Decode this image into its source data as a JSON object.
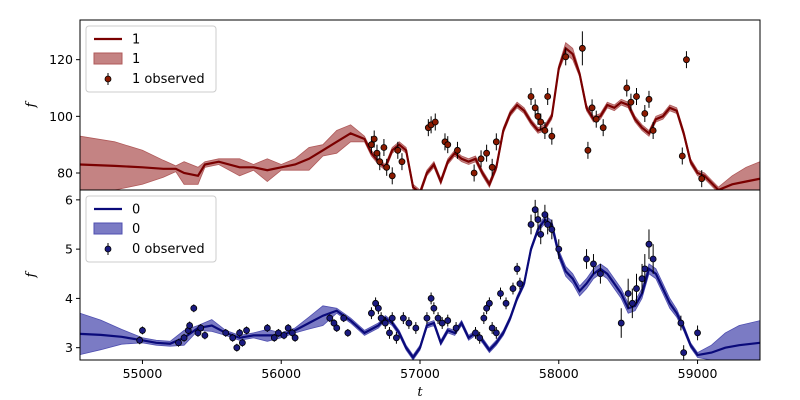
{
  "chart_data": [
    {
      "type": "line",
      "panel": "top",
      "xlabel": "",
      "ylabel": "f",
      "xlim": [
        54550,
        59450
      ],
      "ylim": [
        74,
        134
      ],
      "yticks": [
        80,
        100,
        120
      ],
      "xticks": [],
      "grid": false,
      "legend_placement": "top-left",
      "legend": [
        "1",
        "1",
        "1 observed"
      ],
      "colors": {
        "line": "#7a0000",
        "band": "#b05a5a",
        "point_face": "#8b1a00"
      },
      "series": [
        {
          "name": "1",
          "kind": "line",
          "x": [
            54550,
            54800,
            55000,
            55150,
            55240,
            55300,
            55400,
            55450,
            55550,
            55700,
            55800,
            55900,
            56000,
            56100,
            56200,
            56300,
            56400,
            56500,
            56600,
            56650,
            56700,
            56750,
            56800,
            56850,
            56900,
            56950,
            57000,
            57050,
            57100,
            57150,
            57200,
            57250,
            57300,
            57350,
            57400,
            57450,
            57500,
            57550,
            57600,
            57650,
            57700,
            57750,
            57800,
            57850,
            57900,
            57950,
            58000,
            58050,
            58100,
            58150,
            58200,
            58250,
            58300,
            58350,
            58400,
            58450,
            58500,
            58550,
            58600,
            58650,
            58700,
            58750,
            58800,
            58850,
            58900,
            58950,
            59000,
            59050,
            59150,
            59250,
            59350,
            59450
          ],
          "y": [
            83,
            82.5,
            82,
            81.5,
            81.5,
            80,
            79,
            83,
            84,
            82,
            82,
            81,
            82,
            83,
            85,
            88,
            91,
            94,
            92,
            87,
            84,
            82,
            88,
            90,
            88,
            75,
            73,
            80,
            83,
            77,
            84,
            87,
            85,
            84,
            85,
            80,
            76,
            82,
            95,
            101,
            104,
            102,
            98,
            95,
            96,
            100,
            117,
            124,
            122,
            115,
            103,
            99,
            100,
            104,
            103,
            105,
            104,
            99,
            96,
            94,
            99,
            100,
            103,
            102,
            94,
            84,
            80,
            79,
            74,
            76,
            77,
            78
          ]
        },
        {
          "name": "1",
          "kind": "band",
          "x": [
            54550,
            54800,
            55000,
            55150,
            55240,
            55300,
            55400,
            55450,
            55550,
            55700,
            55800,
            55900,
            56000,
            56100,
            56200,
            56300,
            56400,
            56500,
            56600,
            56650,
            56700,
            56750,
            56800,
            56850,
            56900,
            56950,
            57000,
            57050,
            57100,
            57150,
            57200,
            57250,
            57300,
            57350,
            57400,
            57450,
            57500,
            57550,
            57600,
            57650,
            57700,
            57750,
            57800,
            57850,
            57900,
            57950,
            58000,
            58050,
            58100,
            58150,
            58200,
            58250,
            58300,
            58350,
            58400,
            58450,
            58500,
            58550,
            58600,
            58650,
            58700,
            58750,
            58800,
            58850,
            58900,
            58950,
            59000,
            59050,
            59150,
            59250,
            59350,
            59450
          ],
          "half_width": [
            10,
            8.5,
            6,
            3,
            1,
            4,
            3,
            1,
            1,
            3,
            1,
            4,
            1,
            2,
            4,
            2,
            4,
            3,
            1,
            1,
            1,
            1,
            1,
            1,
            1,
            1,
            1,
            1,
            1,
            1,
            1,
            1,
            1,
            1,
            1,
            1,
            1,
            1,
            1,
            1,
            1,
            1,
            1,
            1,
            1,
            1,
            1,
            2,
            2,
            1,
            1,
            1,
            1,
            1,
            1,
            1,
            1,
            1,
            1,
            1,
            1,
            1,
            1,
            1,
            1,
            1,
            1,
            1,
            1,
            3,
            5,
            6
          ]
        },
        {
          "name": "1 observed",
          "kind": "points",
          "x": [
            56650,
            56670,
            56690,
            56710,
            56740,
            56760,
            56800,
            56840,
            56870,
            57060,
            57080,
            57110,
            57180,
            57200,
            57270,
            57390,
            57440,
            57480,
            57520,
            57550,
            57800,
            57830,
            57850,
            57870,
            57900,
            57920,
            57950,
            58050,
            58170,
            58210,
            58240,
            58270,
            58320,
            58490,
            58520,
            58560,
            58620,
            58650,
            58680,
            58890,
            58920,
            59030
          ],
          "y": [
            90,
            92,
            87,
            84,
            89,
            82,
            79,
            88,
            84,
            96,
            97,
            98,
            91,
            90,
            88,
            80,
            85,
            87,
            82,
            91,
            107,
            103,
            100,
            98,
            95,
            107,
            93,
            121,
            124,
            88,
            103,
            99,
            96,
            110,
            105,
            107,
            101,
            106,
            95,
            86,
            120,
            78
          ],
          "err": [
            3,
            3,
            3,
            3,
            3,
            3,
            3,
            3,
            3,
            3,
            3,
            3,
            3,
            3,
            3,
            3,
            3,
            3,
            3,
            3,
            3,
            3,
            3,
            3,
            3,
            3,
            3,
            3,
            6,
            3,
            3,
            3,
            3,
            3,
            3,
            3,
            3,
            3,
            3,
            3,
            3,
            3
          ]
        }
      ]
    },
    {
      "type": "line",
      "panel": "bottom",
      "xlabel": "t",
      "ylabel": "f",
      "xlim": [
        54550,
        59450
      ],
      "ylim": [
        2.75,
        6.2
      ],
      "yticks": [
        3,
        4,
        5,
        6
      ],
      "xticks": [
        55000,
        56000,
        57000,
        58000,
        59000
      ],
      "grid": false,
      "legend_placement": "top-left",
      "legend": [
        "0",
        "0",
        "0 observed"
      ],
      "colors": {
        "line": "#0a0a7a",
        "band": "#4f4fb0",
        "point_face": "#1a1a80"
      },
      "series": [
        {
          "name": "0",
          "kind": "line",
          "x": [
            54550,
            54700,
            54850,
            55000,
            55100,
            55200,
            55300,
            55400,
            55500,
            55600,
            55700,
            55800,
            55900,
            56000,
            56100,
            56200,
            56300,
            56400,
            56500,
            56600,
            56700,
            56750,
            56800,
            56850,
            56900,
            56950,
            57000,
            57050,
            57100,
            57150,
            57200,
            57250,
            57300,
            57350,
            57400,
            57450,
            57500,
            57550,
            57600,
            57650,
            57700,
            57750,
            57800,
            57850,
            57900,
            57950,
            58000,
            58050,
            58100,
            58150,
            58200,
            58250,
            58300,
            58350,
            58400,
            58450,
            58500,
            58550,
            58600,
            58650,
            58700,
            58750,
            58800,
            58850,
            58900,
            58950,
            59000,
            59100,
            59200,
            59300,
            59450
          ],
          "y": [
            3.28,
            3.26,
            3.22,
            3.15,
            3.1,
            3.08,
            3.2,
            3.4,
            3.45,
            3.3,
            3.2,
            3.25,
            3.25,
            3.25,
            3.35,
            3.5,
            3.65,
            3.75,
            3.55,
            3.3,
            3.45,
            3.6,
            3.5,
            3.3,
            3.0,
            2.8,
            3.0,
            3.45,
            3.5,
            3.1,
            3.35,
            3.3,
            3.5,
            3.2,
            3.3,
            3.15,
            2.95,
            3.1,
            3.3,
            3.6,
            4.0,
            4.3,
            5.0,
            5.4,
            5.6,
            5.5,
            4.9,
            4.55,
            4.4,
            4.15,
            4.3,
            4.5,
            4.6,
            4.5,
            4.3,
            4.1,
            3.8,
            3.85,
            4.1,
            4.6,
            4.5,
            4.2,
            3.9,
            3.7,
            3.4,
            3.05,
            2.85,
            2.9,
            3.0,
            3.05,
            3.1
          ]
        },
        {
          "name": "0",
          "kind": "band",
          "x": [
            54550,
            54700,
            54850,
            55000,
            55100,
            55200,
            55300,
            55400,
            55500,
            55600,
            55700,
            55800,
            55900,
            56000,
            56100,
            56200,
            56300,
            56400,
            56500,
            56600,
            56700,
            56750,
            56800,
            56850,
            56900,
            56950,
            57000,
            57050,
            57100,
            57150,
            57200,
            57250,
            57300,
            57350,
            57400,
            57450,
            57500,
            57550,
            57600,
            57650,
            57700,
            57750,
            57800,
            57850,
            57900,
            57950,
            58000,
            58050,
            58100,
            58150,
            58200,
            58250,
            58300,
            58350,
            58400,
            58450,
            58500,
            58550,
            58600,
            58650,
            58700,
            58750,
            58800,
            58850,
            58900,
            58950,
            59000,
            59100,
            59200,
            59300,
            59450
          ],
          "half_width": [
            0.42,
            0.3,
            0.15,
            0.05,
            0.05,
            0.05,
            0.15,
            0.05,
            0.12,
            0.05,
            0.05,
            0.05,
            0.12,
            0.05,
            0.05,
            0.12,
            0.2,
            0.05,
            0.05,
            0.05,
            0.05,
            0.05,
            0.05,
            0.05,
            0.05,
            0.05,
            0.05,
            0.05,
            0.05,
            0.05,
            0.05,
            0.05,
            0.05,
            0.05,
            0.05,
            0.05,
            0.05,
            0.05,
            0.05,
            0.05,
            0.05,
            0.05,
            0.05,
            0.05,
            0.08,
            0.08,
            0.08,
            0.1,
            0.1,
            0.1,
            0.1,
            0.1,
            0.1,
            0.1,
            0.1,
            0.1,
            0.1,
            0.1,
            0.1,
            0.1,
            0.1,
            0.1,
            0.1,
            0.08,
            0.06,
            0.05,
            0.05,
            0.15,
            0.3,
            0.4,
            0.45
          ]
        },
        {
          "name": "0 observed",
          "kind": "points",
          "x": [
            54980,
            55000,
            55260,
            55300,
            55330,
            55340,
            55370,
            55400,
            55420,
            55450,
            55600,
            55650,
            55680,
            55700,
            55720,
            55750,
            55900,
            55950,
            55980,
            56020,
            56050,
            56080,
            56100,
            56350,
            56380,
            56400,
            56450,
            56480,
            56650,
            56680,
            56700,
            56720,
            56750,
            56780,
            56800,
            56830,
            56880,
            56920,
            56970,
            57050,
            57080,
            57100,
            57130,
            57160,
            57200,
            57260,
            57400,
            57430,
            57460,
            57480,
            57500,
            57520,
            57550,
            57580,
            57620,
            57670,
            57700,
            57720,
            57800,
            57830,
            57850,
            57870,
            57900,
            57920,
            57950,
            58000,
            58200,
            58250,
            58300,
            58450,
            58500,
            58530,
            58560,
            58600,
            58620,
            58650,
            58680,
            58880,
            58900,
            59000
          ],
          "y": [
            3.15,
            3.35,
            3.1,
            3.2,
            3.35,
            3.45,
            3.8,
            3.3,
            3.4,
            3.25,
            3.3,
            3.2,
            3.0,
            3.3,
            3.1,
            3.35,
            3.4,
            3.2,
            3.3,
            3.25,
            3.4,
            3.3,
            3.2,
            3.6,
            3.5,
            3.4,
            3.6,
            3.3,
            3.7,
            3.9,
            3.8,
            3.6,
            3.5,
            3.3,
            3.6,
            3.2,
            3.6,
            3.5,
            3.4,
            3.6,
            4.0,
            3.8,
            3.6,
            3.5,
            3.55,
            3.4,
            3.3,
            3.2,
            3.6,
            3.8,
            3.9,
            3.4,
            3.3,
            4.1,
            3.9,
            4.2,
            4.6,
            4.3,
            5.5,
            5.8,
            5.6,
            5.3,
            5.7,
            5.5,
            5.4,
            5.0,
            4.8,
            4.7,
            4.5,
            3.5,
            4.1,
            3.9,
            4.2,
            4.4,
            4.6,
            5.1,
            4.8,
            3.5,
            2.9,
            3.3
          ],
          "err": [
            0.08,
            0.08,
            0.08,
            0.08,
            0.08,
            0.08,
            0.08,
            0.08,
            0.08,
            0.08,
            0.08,
            0.08,
            0.08,
            0.08,
            0.08,
            0.08,
            0.08,
            0.08,
            0.08,
            0.08,
            0.08,
            0.08,
            0.08,
            0.08,
            0.08,
            0.08,
            0.08,
            0.08,
            0.12,
            0.12,
            0.12,
            0.12,
            0.12,
            0.12,
            0.12,
            0.12,
            0.12,
            0.12,
            0.12,
            0.12,
            0.12,
            0.12,
            0.12,
            0.12,
            0.12,
            0.12,
            0.12,
            0.12,
            0.12,
            0.12,
            0.12,
            0.12,
            0.12,
            0.12,
            0.12,
            0.12,
            0.12,
            0.12,
            0.2,
            0.2,
            0.2,
            0.2,
            0.2,
            0.2,
            0.2,
            0.2,
            0.2,
            0.2,
            0.2,
            0.3,
            0.3,
            0.3,
            0.3,
            0.3,
            0.3,
            0.3,
            0.3,
            0.15,
            0.15,
            0.15
          ]
        }
      ]
    }
  ]
}
